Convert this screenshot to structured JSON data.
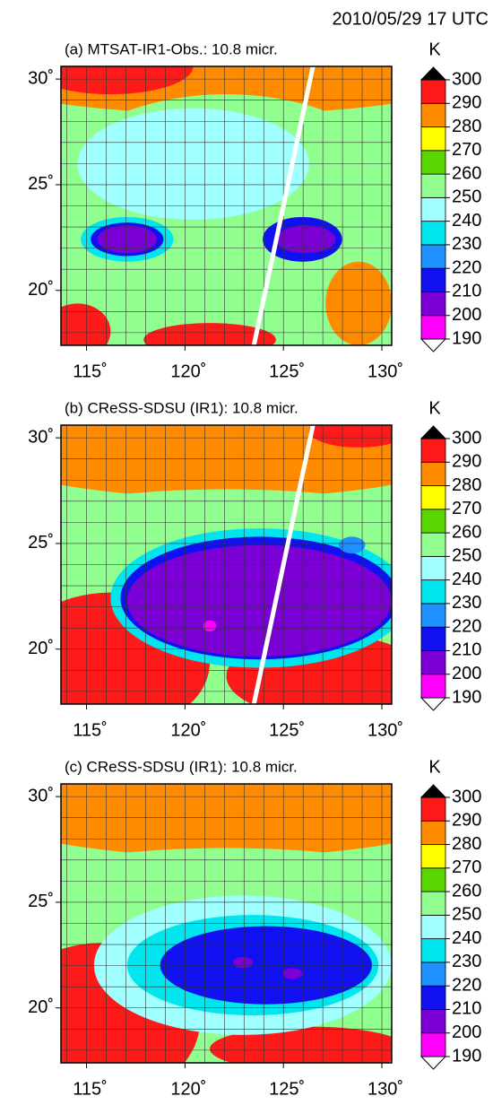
{
  "title": "2010/05/29 17 UTC",
  "chart_data": [
    {
      "type": "map",
      "title": "(a) MTSAT-IR1-Obs.:   10.8 micr.",
      "xlim": [
        113.7,
        130.5
      ],
      "ylim": [
        17.4,
        30.6
      ],
      "xticks": [
        {
          "value": 115,
          "label": "115˚"
        },
        {
          "value": 120,
          "label": "120˚"
        },
        {
          "value": 125,
          "label": "125˚"
        },
        {
          "value": 130,
          "label": "130˚"
        }
      ],
      "yticks": [
        {
          "value": 20,
          "label": "20˚"
        },
        {
          "value": 25,
          "label": "25˚"
        },
        {
          "value": 30,
          "label": "30˚"
        }
      ],
      "xgrid": [
        114,
        115,
        116,
        117,
        118,
        119,
        120,
        121,
        122,
        123,
        124,
        125,
        126,
        127,
        128,
        129,
        130
      ],
      "ygrid": [
        18,
        19,
        20,
        21,
        22,
        23,
        24,
        25,
        26,
        27,
        28,
        29,
        30
      ],
      "track": {
        "x": [
          123.5,
          126.5
        ],
        "y": [
          17.4,
          30.6
        ],
        "color": "#ffffff"
      },
      "colorbar": {
        "unit": "K",
        "levels": [
          190,
          200,
          210,
          220,
          230,
          240,
          250,
          260,
          270,
          280,
          290,
          300
        ],
        "colors": [
          "#ff00ff",
          "#7a00d6",
          "#1010f0",
          "#1e90ff",
          "#00e5ee",
          "#a0ffff",
          "#90ff90",
          "#5cd600",
          "#ffff00",
          "#ff8c00",
          "#ff1a1a"
        ],
        "under": "#ffffff",
        "over": "#000000"
      }
    },
    {
      "type": "map",
      "title": "(b) CReSS-SDSU (IR1): 10.8 micr.",
      "xlim": [
        113.7,
        130.5
      ],
      "ylim": [
        17.4,
        30.6
      ],
      "xticks": [
        {
          "value": 115,
          "label": "115˚"
        },
        {
          "value": 120,
          "label": "120˚"
        },
        {
          "value": 125,
          "label": "125˚"
        },
        {
          "value": 130,
          "label": "130˚"
        }
      ],
      "yticks": [
        {
          "value": 20,
          "label": "20˚"
        },
        {
          "value": 25,
          "label": "25˚"
        },
        {
          "value": 30,
          "label": "30˚"
        }
      ],
      "xgrid": [
        114,
        115,
        116,
        117,
        118,
        119,
        120,
        121,
        122,
        123,
        124,
        125,
        126,
        127,
        128,
        129,
        130
      ],
      "ygrid": [
        18,
        19,
        20,
        21,
        22,
        23,
        24,
        25,
        26,
        27,
        28,
        29,
        30
      ],
      "track": {
        "x": [
          123.5,
          126.5
        ],
        "y": [
          17.4,
          30.6
        ],
        "color": "#ffffff"
      },
      "colorbar": {
        "unit": "K",
        "levels": [
          190,
          200,
          210,
          220,
          230,
          240,
          250,
          260,
          270,
          280,
          290,
          300
        ],
        "colors": [
          "#ff00ff",
          "#7a00d6",
          "#1010f0",
          "#1e90ff",
          "#00e5ee",
          "#a0ffff",
          "#90ff90",
          "#5cd600",
          "#ffff00",
          "#ff8c00",
          "#ff1a1a"
        ],
        "under": "#ffffff",
        "over": "#000000"
      }
    },
    {
      "type": "map",
      "title": "(c) CReSS-SDSU (IR1): 10.8 micr.",
      "xlim": [
        113.7,
        130.5
      ],
      "ylim": [
        17.4,
        30.6
      ],
      "xticks": [
        {
          "value": 115,
          "label": "115˚"
        },
        {
          "value": 120,
          "label": "120˚"
        },
        {
          "value": 125,
          "label": "125˚"
        },
        {
          "value": 130,
          "label": "130˚"
        }
      ],
      "yticks": [
        {
          "value": 20,
          "label": "20˚"
        },
        {
          "value": 25,
          "label": "25˚"
        },
        {
          "value": 30,
          "label": "30˚"
        }
      ],
      "xgrid": [
        114,
        115,
        116,
        117,
        118,
        119,
        120,
        121,
        122,
        123,
        124,
        125,
        126,
        127,
        128,
        129,
        130
      ],
      "ygrid": [
        18,
        19,
        20,
        21,
        22,
        23,
        24,
        25,
        26,
        27,
        28,
        29,
        30
      ],
      "colorbar": {
        "unit": "K",
        "levels": [
          190,
          200,
          210,
          220,
          230,
          240,
          250,
          260,
          270,
          280,
          290,
          300
        ],
        "colors": [
          "#ff00ff",
          "#7a00d6",
          "#1010f0",
          "#1e90ff",
          "#00e5ee",
          "#a0ffff",
          "#90ff90",
          "#5cd600",
          "#ffff00",
          "#ff8c00",
          "#ff1a1a"
        ],
        "under": "#ffffff",
        "over": "#000000"
      }
    }
  ]
}
